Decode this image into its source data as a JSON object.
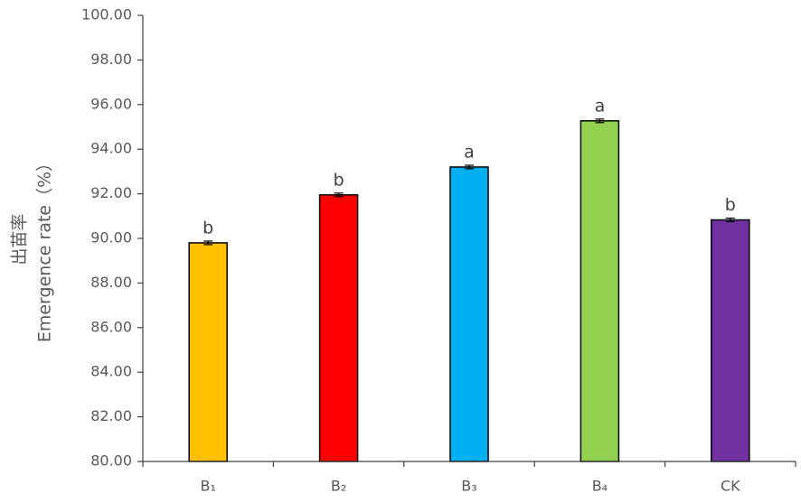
{
  "chart_data": {
    "type": "bar",
    "ylabel_lines": [
      "出苗率",
      "Emergence rate（%）"
    ],
    "categories": [
      "B₁",
      "B₂",
      "B₃",
      "B₄",
      "CK"
    ],
    "values": [
      89.8,
      91.95,
      93.2,
      95.27,
      90.83
    ],
    "errors": [
      0.08,
      0.08,
      0.08,
      0.08,
      0.08
    ],
    "significance": [
      "b",
      "b",
      "a",
      "a",
      "b"
    ],
    "colors": [
      "#FFC000",
      "#FF0000",
      "#00B0F0",
      "#92D050",
      "#7030A0"
    ],
    "ylim": [
      80,
      100
    ],
    "yticks": [
      {
        "value": 80,
        "label": "80.00"
      },
      {
        "value": 82,
        "label": "82.00"
      },
      {
        "value": 84,
        "label": "84.00"
      },
      {
        "value": 86,
        "label": "86.00"
      },
      {
        "value": 88,
        "label": "88.00"
      },
      {
        "value": 90,
        "label": "90.00"
      },
      {
        "value": 92,
        "label": "92.00"
      },
      {
        "value": 94,
        "label": "94.00"
      },
      {
        "value": 96,
        "label": "96.00"
      },
      {
        "value": 98,
        "label": "98.00"
      },
      {
        "value": 100,
        "label": "100.00"
      }
    ],
    "grid": false
  }
}
